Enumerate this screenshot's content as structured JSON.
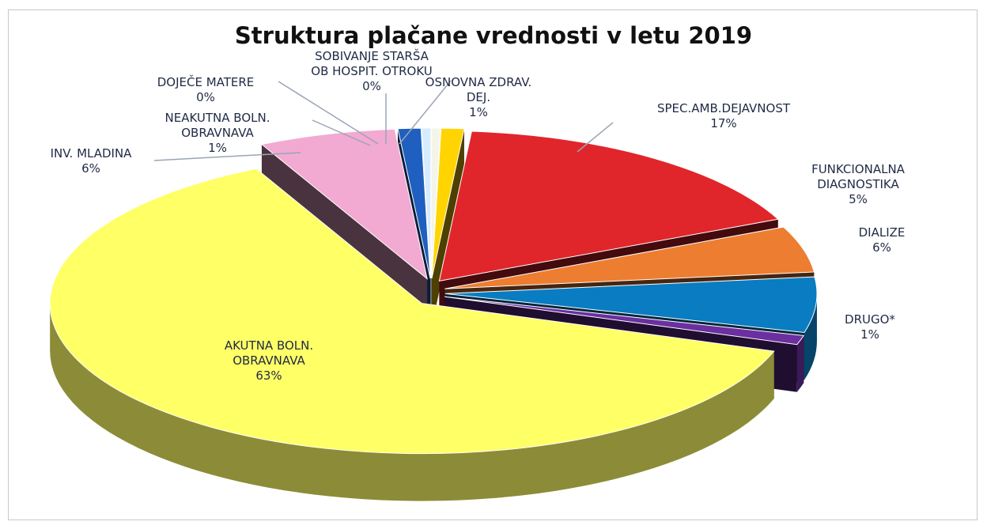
{
  "chart_data": {
    "type": "pie",
    "title": "Struktura plačane vrednosti v letu 2019",
    "categories": [
      "SOBIVANJE STARŠA\nOB HOSPIT. OTROKU",
      "OSNOVNA ZDRAV.\nDEJ.",
      "SPEC.AMB.DEJAVNOST",
      "FUNKCIONALNA\nDIAGNOSTIKA",
      "DIALIZE",
      "DRUGO*",
      "AKUTNA BOLN.\nOBRAVNAVA",
      "INV. MLADINA",
      "NEAKUTNA BOLN.\nOBRAVNAVA",
      "DOJEČE MATERE"
    ],
    "values": [
      0.4,
      1,
      17,
      5,
      6,
      1,
      63,
      6,
      1,
      0.4
    ],
    "value_labels": [
      "0%",
      "1%",
      "17%",
      "5%",
      "6%",
      "1%",
      "63%",
      "6%",
      "1%",
      "0%"
    ],
    "colors": [
      "#f4f4e8",
      "#ffd400",
      "#e0262b",
      "#ed7d31",
      "#0a7cc1",
      "#6b2fa0",
      "#ffff66",
      "#f2a9d2",
      "#1f5fbf",
      "#d6ecff"
    ]
  }
}
